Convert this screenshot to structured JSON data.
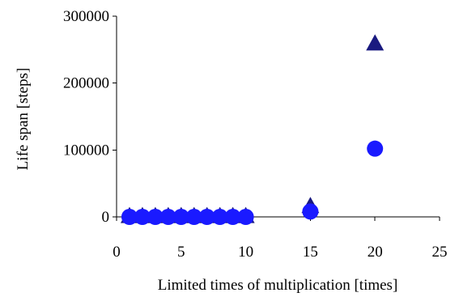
{
  "chart_data": {
    "type": "scatter",
    "title": "",
    "xlabel": "Limited times of multiplication [times]",
    "ylabel": "Life span [steps]",
    "xlim": [
      0,
      25
    ],
    "ylim": [
      0,
      300000
    ],
    "xticks": [
      "0",
      "5",
      "10",
      "15",
      "20",
      "25"
    ],
    "yticks": [
      "0",
      "100000",
      "200000",
      "300000"
    ],
    "grid": false,
    "legend": "none",
    "series": [
      {
        "marker": "triangle",
        "color": "#1a1a80",
        "points": [
          [
            1,
            0
          ],
          [
            2,
            0
          ],
          [
            3,
            0
          ],
          [
            4,
            0
          ],
          [
            5,
            0
          ],
          [
            6,
            0
          ],
          [
            7,
            0
          ],
          [
            8,
            0
          ],
          [
            9,
            0
          ],
          [
            10,
            0
          ],
          [
            15,
            15000
          ],
          [
            20,
            258000
          ]
        ]
      },
      {
        "marker": "circle",
        "color": "#1a1aff",
        "points": [
          [
            1,
            0
          ],
          [
            2,
            0
          ],
          [
            3,
            0
          ],
          [
            4,
            0
          ],
          [
            5,
            0
          ],
          [
            6,
            0
          ],
          [
            7,
            0
          ],
          [
            8,
            0
          ],
          [
            9,
            0
          ],
          [
            10,
            0
          ],
          [
            15,
            8000
          ],
          [
            20,
            102000
          ]
        ]
      }
    ]
  }
}
